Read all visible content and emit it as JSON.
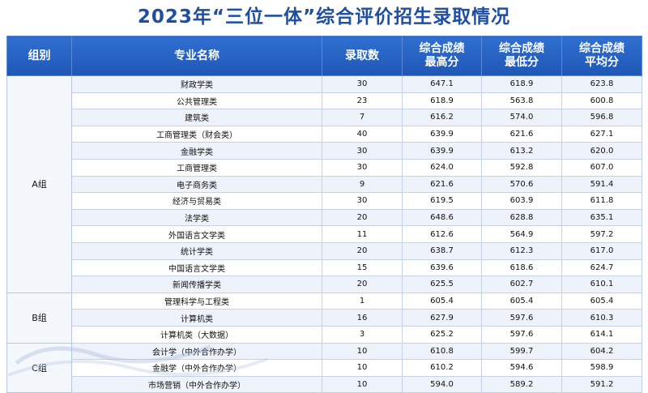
{
  "title": "2023年“三位一体”综合评价招生录取情况",
  "headers": {
    "group": "组别",
    "major": "专业名称",
    "count": "录取数",
    "max": [
      "综合成绩",
      "最高分"
    ],
    "min": [
      "综合成绩",
      "最低分"
    ],
    "avg": [
      "综合成绩",
      "平均分"
    ]
  },
  "groups": [
    {
      "name": "A组",
      "rows": [
        {
          "major": "财政学类",
          "count": "30",
          "max": "647.1",
          "min": "618.9",
          "avg": "623.8"
        },
        {
          "major": "公共管理类",
          "count": "23",
          "max": "618.9",
          "min": "563.8",
          "avg": "600.8"
        },
        {
          "major": "建筑类",
          "count": "7",
          "max": "616.2",
          "min": "574.0",
          "avg": "596.8"
        },
        {
          "major": "工商管理类（财会类）",
          "count": "40",
          "max": "639.9",
          "min": "621.6",
          "avg": "627.1"
        },
        {
          "major": "金融学类",
          "count": "30",
          "max": "639.9",
          "min": "613.2",
          "avg": "620.0"
        },
        {
          "major": "工商管理类",
          "count": "30",
          "max": "624.0",
          "min": "592.8",
          "avg": "607.0"
        },
        {
          "major": "电子商务类",
          "count": "9",
          "max": "621.6",
          "min": "570.6",
          "avg": "591.4"
        },
        {
          "major": "经济与贸易类",
          "count": "30",
          "max": "619.5",
          "min": "603.9",
          "avg": "611.8"
        },
        {
          "major": "法学类",
          "count": "20",
          "max": "648.6",
          "min": "628.8",
          "avg": "635.1"
        },
        {
          "major": "外国语言文学类",
          "count": "11",
          "max": "612.6",
          "min": "564.9",
          "avg": "597.2"
        },
        {
          "major": "统计学类",
          "count": "20",
          "max": "638.7",
          "min": "612.3",
          "avg": "617.0"
        },
        {
          "major": "中国语言文学类",
          "count": "15",
          "max": "639.6",
          "min": "618.6",
          "avg": "624.7"
        },
        {
          "major": "新闻传播学类",
          "count": "20",
          "max": "625.5",
          "min": "602.7",
          "avg": "610.1"
        }
      ]
    },
    {
      "name": "B组",
      "rows": [
        {
          "major": "管理科学与工程类",
          "count": "1",
          "max": "605.4",
          "min": "605.4",
          "avg": "605.4"
        },
        {
          "major": "计算机类",
          "count": "16",
          "max": "627.9",
          "min": "597.6",
          "avg": "610.3"
        },
        {
          "major": "计算机类（大数据）",
          "count": "3",
          "max": "625.2",
          "min": "597.6",
          "avg": "614.1"
        }
      ]
    },
    {
      "name": "C组",
      "rows": [
        {
          "major": "会计学（中外合作办学）",
          "count": "10",
          "max": "610.8",
          "min": "599.7",
          "avg": "604.2"
        },
        {
          "major": "金融学（中外合作办学）",
          "count": "10",
          "max": "610.2",
          "min": "594.6",
          "avg": "598.9"
        },
        {
          "major": "市场营销（中外合作办学）",
          "count": "10",
          "max": "594.0",
          "min": "589.2",
          "avg": "591.2"
        }
      ]
    }
  ],
  "colors": {
    "title": "#1e4fa3",
    "header_bg": "#2565c4",
    "row_stripe": "#eef3fb"
  }
}
